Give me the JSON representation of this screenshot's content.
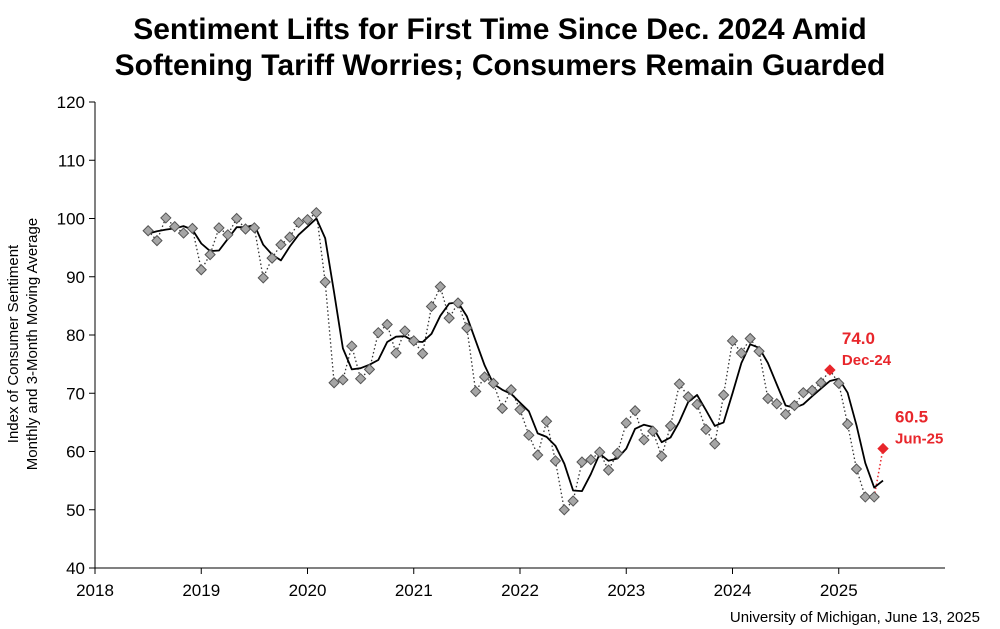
{
  "title_line1": "Sentiment Lifts for First Time Since Dec. 2024 Amid",
  "title_line2": "Softening Tariff Worries; Consumers Remain Guarded",
  "source": "University of Michigan, June 13, 2025",
  "colors": {
    "accent": "#e8262b",
    "marker": "#a6a6a6",
    "line": "#000000"
  },
  "chart_data": {
    "type": "line",
    "title": "Sentiment Lifts for First Time Since Dec. 2024 Amid Softening Tariff Worries; Consumers Remain Guarded",
    "ylabel_line1": "Index of Consumer Sentiment",
    "ylabel_line2": "Monthly and 3-Month Moving Average",
    "xlabel": "",
    "xlim": [
      2018,
      2026
    ],
    "ylim": [
      40,
      120
    ],
    "x_ticks": [
      "2018",
      "2019",
      "2020",
      "2021",
      "2022",
      "2023",
      "2024",
      "2025"
    ],
    "y_ticks": [
      "40",
      "50",
      "60",
      "70",
      "80",
      "90",
      "100",
      "110",
      "120"
    ],
    "grid": false,
    "series": [
      {
        "kind": "monthly",
        "style": "dotted line with diamond markers",
        "x": [
          "2018-07",
          "2018-08",
          "2018-09",
          "2018-10",
          "2018-11",
          "2018-12",
          "2019-01",
          "2019-02",
          "2019-03",
          "2019-04",
          "2019-05",
          "2019-06",
          "2019-07",
          "2019-08",
          "2019-09",
          "2019-10",
          "2019-11",
          "2019-12",
          "2020-01",
          "2020-02",
          "2020-03",
          "2020-04",
          "2020-05",
          "2020-06",
          "2020-07",
          "2020-08",
          "2020-09",
          "2020-10",
          "2020-11",
          "2020-12",
          "2021-01",
          "2021-02",
          "2021-03",
          "2021-04",
          "2021-05",
          "2021-06",
          "2021-07",
          "2021-08",
          "2021-09",
          "2021-10",
          "2021-11",
          "2021-12",
          "2022-01",
          "2022-02",
          "2022-03",
          "2022-04",
          "2022-05",
          "2022-06",
          "2022-07",
          "2022-08",
          "2022-09",
          "2022-10",
          "2022-11",
          "2022-12",
          "2023-01",
          "2023-02",
          "2023-03",
          "2023-04",
          "2023-05",
          "2023-06",
          "2023-07",
          "2023-08",
          "2023-09",
          "2023-10",
          "2023-11",
          "2023-12",
          "2024-01",
          "2024-02",
          "2024-03",
          "2024-04",
          "2024-05",
          "2024-06",
          "2024-07",
          "2024-08",
          "2024-09",
          "2024-10",
          "2024-11",
          "2024-12",
          "2025-01",
          "2025-02",
          "2025-03",
          "2025-04",
          "2025-05",
          "2025-06"
        ],
        "values": [
          97.9,
          96.2,
          100.1,
          98.6,
          97.5,
          98.3,
          91.2,
          93.8,
          98.4,
          97.2,
          100.0,
          98.2,
          98.4,
          89.8,
          93.2,
          95.5,
          96.8,
          99.3,
          99.8,
          101.0,
          89.1,
          71.8,
          72.3,
          78.1,
          72.5,
          74.1,
          80.4,
          81.8,
          76.9,
          80.7,
          79.0,
          76.8,
          84.9,
          88.3,
          82.9,
          85.5,
          81.2,
          70.3,
          72.8,
          71.7,
          67.4,
          70.6,
          67.2,
          62.8,
          59.4,
          65.2,
          58.4,
          50.0,
          51.5,
          58.2,
          58.6,
          59.9,
          56.8,
          59.7,
          64.9,
          67.0,
          62.0,
          63.5,
          59.2,
          64.4,
          71.6,
          69.4,
          68.1,
          63.8,
          61.3,
          69.7,
          79.0,
          76.9,
          79.4,
          77.2,
          69.1,
          68.2,
          66.4,
          67.9,
          70.1,
          70.5,
          71.8,
          74.0,
          71.7,
          64.7,
          57.0,
          52.2,
          52.2,
          60.5
        ]
      },
      {
        "kind": "3-month moving average",
        "style": "solid line",
        "x": [
          "2018-07",
          "2018-08",
          "2018-09",
          "2018-10",
          "2018-11",
          "2018-12",
          "2019-01",
          "2019-02",
          "2019-03",
          "2019-04",
          "2019-05",
          "2019-06",
          "2019-07",
          "2019-08",
          "2019-09",
          "2019-10",
          "2019-11",
          "2019-12",
          "2020-01",
          "2020-02",
          "2020-03",
          "2020-04",
          "2020-05",
          "2020-06",
          "2020-07",
          "2020-08",
          "2020-09",
          "2020-10",
          "2020-11",
          "2020-12",
          "2021-01",
          "2021-02",
          "2021-03",
          "2021-04",
          "2021-05",
          "2021-06",
          "2021-07",
          "2021-08",
          "2021-09",
          "2021-10",
          "2021-11",
          "2021-12",
          "2022-01",
          "2022-02",
          "2022-03",
          "2022-04",
          "2022-05",
          "2022-06",
          "2022-07",
          "2022-08",
          "2022-09",
          "2022-10",
          "2022-11",
          "2022-12",
          "2023-01",
          "2023-02",
          "2023-03",
          "2023-04",
          "2023-05",
          "2023-06",
          "2023-07",
          "2023-08",
          "2023-09",
          "2023-10",
          "2023-11",
          "2023-12",
          "2024-01",
          "2024-02",
          "2024-03",
          "2024-04",
          "2024-05",
          "2024-06",
          "2024-07",
          "2024-08",
          "2024-09",
          "2024-10",
          "2024-11",
          "2024-12",
          "2025-01",
          "2025-02",
          "2025-03",
          "2025-04",
          "2025-05",
          "2025-06"
        ],
        "values": [
          97.4,
          97.8,
          98.1,
          98.3,
          98.7,
          98.1,
          95.7,
          94.4,
          94.5,
          96.5,
          98.5,
          98.5,
          98.9,
          95.5,
          93.8,
          92.8,
          95.2,
          97.2,
          98.6,
          100.0,
          96.6,
          87.3,
          77.7,
          74.1,
          74.3,
          74.9,
          75.7,
          78.8,
          79.7,
          79.8,
          78.9,
          78.8,
          80.2,
          83.3,
          85.4,
          85.6,
          83.2,
          79.0,
          74.8,
          71.6,
          70.6,
          69.9,
          68.4,
          66.9,
          63.1,
          62.5,
          61.0,
          57.9,
          53.3,
          53.2,
          56.1,
          59.6,
          58.4,
          58.8,
          60.5,
          63.9,
          64.6,
          64.2,
          61.6,
          62.4,
          65.1,
          68.5,
          69.7,
          67.1,
          64.4,
          65.0,
          70.0,
          75.2,
          78.4,
          77.8,
          75.2,
          71.5,
          67.9,
          67.5,
          68.1,
          69.5,
          70.8,
          72.1,
          72.5,
          70.1,
          64.5,
          58.0,
          53.8,
          55.0
        ]
      }
    ],
    "annotations": [
      {
        "value": "74.0",
        "date": "Dec-24",
        "x": "2024-12",
        "y": 74.0
      },
      {
        "value": "60.5",
        "date": "Jun-25",
        "x": "2025-06",
        "y": 60.5
      }
    ]
  }
}
